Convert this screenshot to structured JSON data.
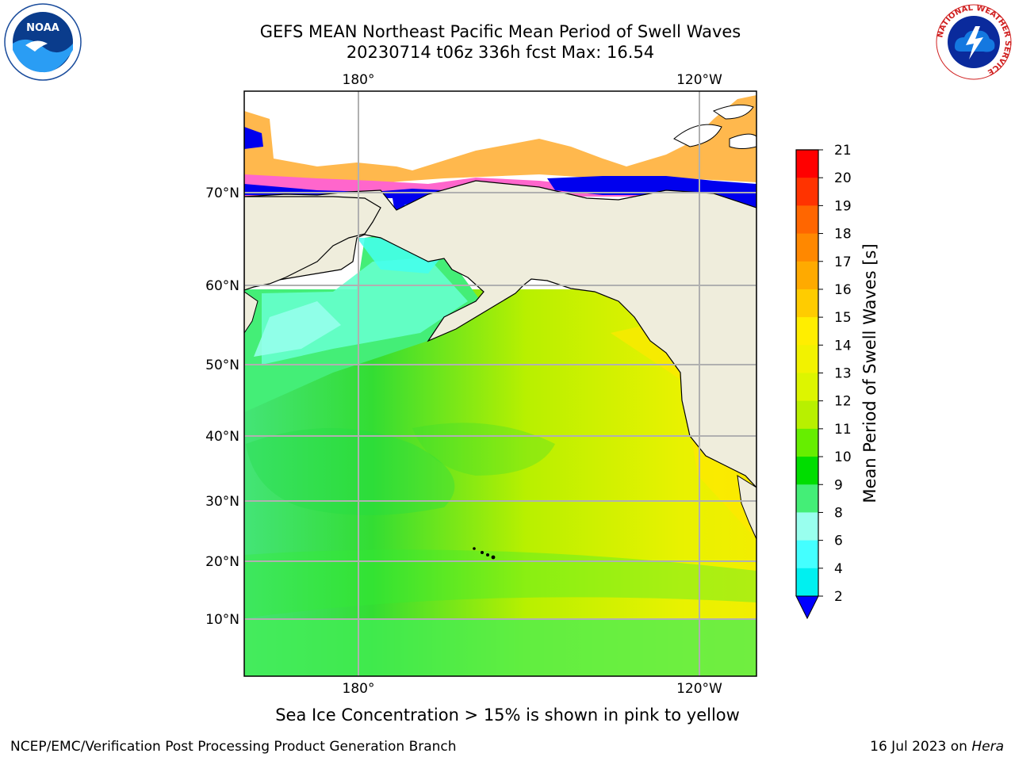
{
  "title": {
    "line1": "GEFS MEAN Northeast Pacific Mean Period of Swell Waves",
    "line2": "20230714 t06z 336h fcst   Max: 16.54"
  },
  "map": {
    "longitude_labels_top": [
      "180°",
      "120°W"
    ],
    "longitude_labels_bottom": [
      "180°",
      "120°W"
    ],
    "latitude_labels": [
      "70°N",
      "60°N",
      "50°N",
      "40°N",
      "30°N",
      "20°N",
      "10°N"
    ],
    "colors": {
      "land": "#efeddc",
      "grid": "#b0b0b0",
      "coast": "#000000"
    }
  },
  "colorbar": {
    "title": "Mean Period of Swell Waves [s]",
    "ticks": [
      "21",
      "20",
      "19",
      "18",
      "17",
      "16",
      "15",
      "14",
      "13",
      "12",
      "11",
      "10",
      "9",
      "8",
      "6",
      "4",
      "2"
    ],
    "colors": [
      "#ff0000",
      "#ff3300",
      "#ff6600",
      "#ff8800",
      "#ffaa00",
      "#ffcc00",
      "#ffee00",
      "#f2f200",
      "#ddf500",
      "#b8f000",
      "#66ee00",
      "#00dd00",
      "#44ee77",
      "#99ffee",
      "#44ffff",
      "#00f0f0",
      "#00bbff",
      "#0077ff",
      "#0000ff"
    ]
  },
  "footnote": "Sea Ice Concentration > 15% is shown in pink to yellow",
  "credit": "NCEP/EMC/Verification Post Processing Product Generation Branch",
  "datestamp": {
    "date": "16 Jul 2023 on ",
    "machine": "Hera"
  },
  "logos": {
    "noaa": "NOAA",
    "nws_ring": "NATIONAL WEATHER SERVICE"
  }
}
